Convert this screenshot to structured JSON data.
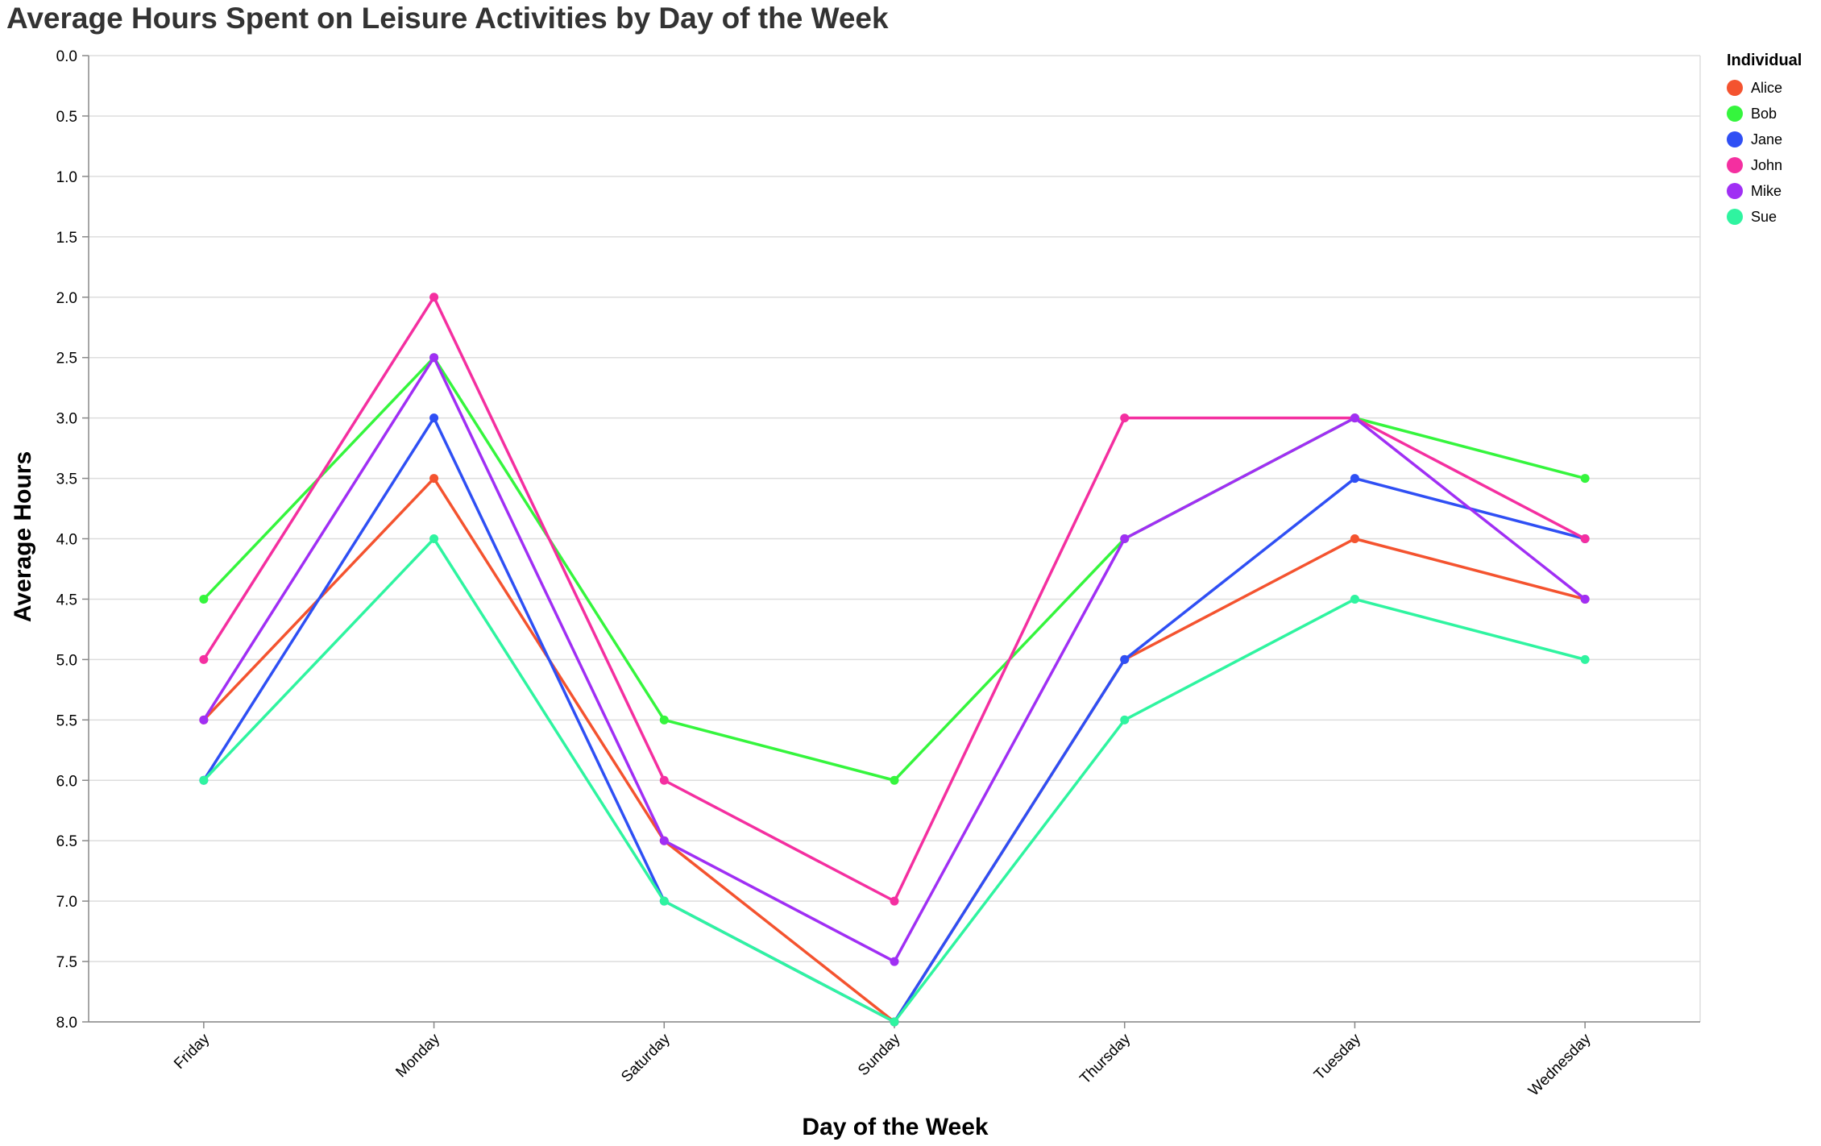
{
  "chart_data": {
    "type": "line",
    "title": "Average Hours Spent on Leisure Activities by Day of the Week",
    "xlabel": "Day of the Week",
    "ylabel": "Average Hours",
    "categories": [
      "Friday",
      "Monday",
      "Saturday",
      "Sunday",
      "Thursday",
      "Tuesday",
      "Wednesday"
    ],
    "ylim": [
      0,
      8
    ],
    "y_reversed": true,
    "y_ticks": [
      "0.0",
      "0.5",
      "1.0",
      "1.5",
      "2.0",
      "2.5",
      "3.0",
      "3.5",
      "4.0",
      "4.5",
      "5.0",
      "5.5",
      "6.0",
      "6.5",
      "7.0",
      "7.5",
      "8.0"
    ],
    "grid": true,
    "legend_title": "Individual",
    "legend_position": "right",
    "series": [
      {
        "name": "Alice",
        "color": "#f4532f",
        "values": [
          5.5,
          3.5,
          6.5,
          8.0,
          5.0,
          4.0,
          4.5
        ]
      },
      {
        "name": "Bob",
        "color": "#35f53d",
        "values": [
          4.5,
          2.5,
          5.5,
          6.0,
          4.0,
          3.0,
          3.5
        ]
      },
      {
        "name": "Jane",
        "color": "#2f4ff4",
        "values": [
          6.0,
          3.0,
          7.0,
          8.0,
          5.0,
          3.5,
          4.0
        ]
      },
      {
        "name": "John",
        "color": "#f42fa0",
        "values": [
          5.0,
          2.0,
          6.0,
          7.0,
          3.0,
          3.0,
          4.0
        ]
      },
      {
        "name": "Mike",
        "color": "#a02ff4",
        "values": [
          5.5,
          2.5,
          6.5,
          7.5,
          4.0,
          3.0,
          4.5
        ]
      },
      {
        "name": "Sue",
        "color": "#2ff4a0",
        "values": [
          6.0,
          4.0,
          7.0,
          8.0,
          5.5,
          4.5,
          5.0
        ]
      }
    ]
  }
}
